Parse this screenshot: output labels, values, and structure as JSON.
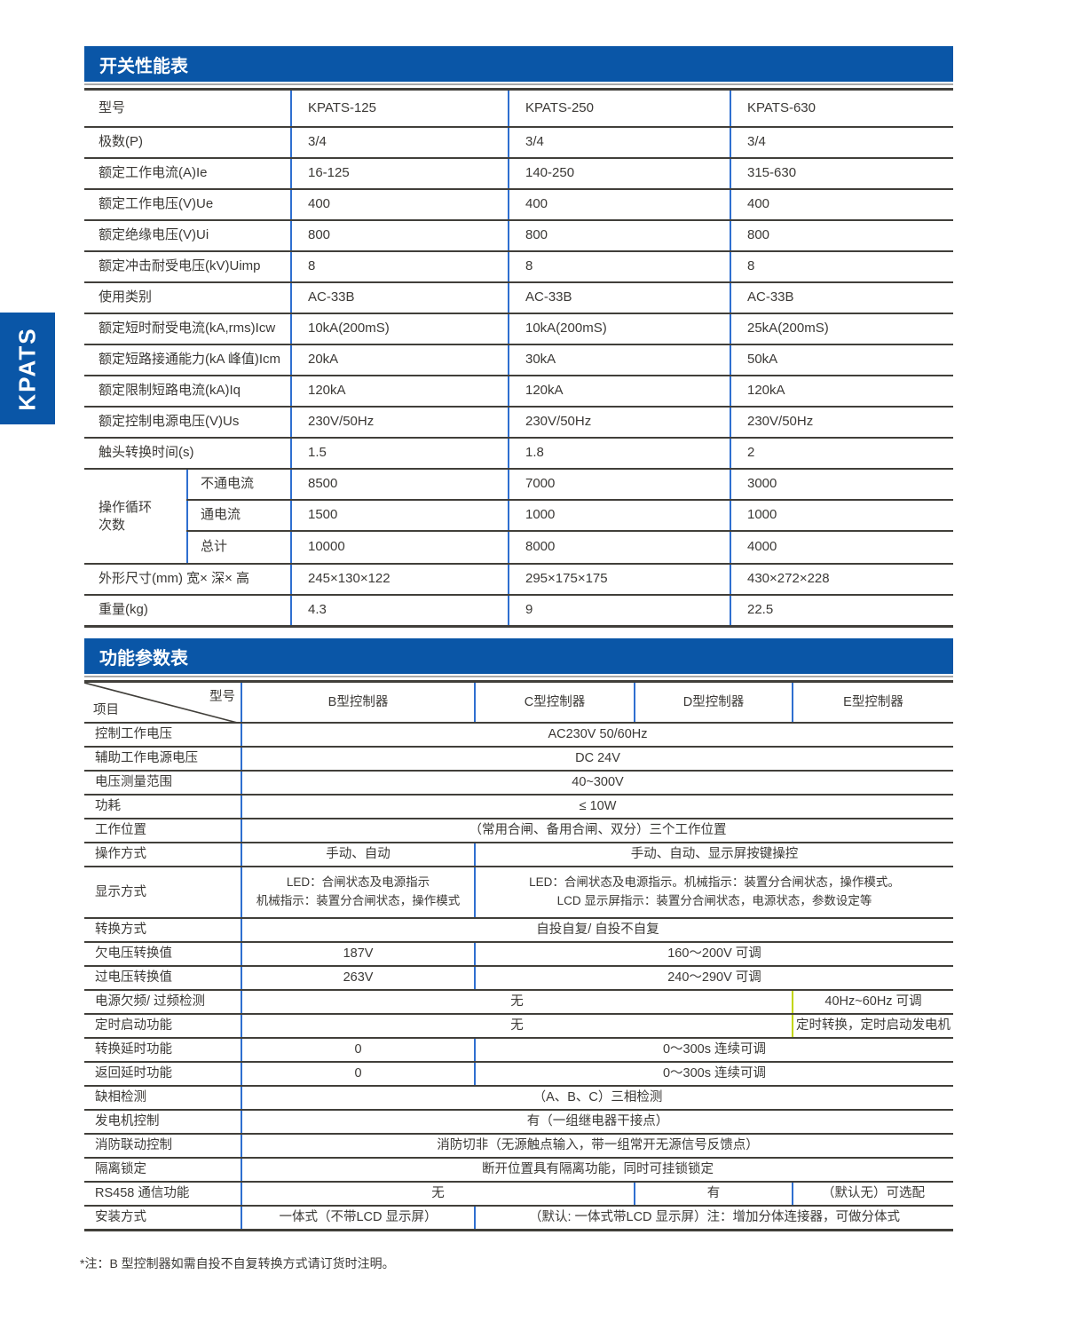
{
  "sidebar": {
    "label": "KPATS"
  },
  "colors": {
    "primary_blue": "#0a56a7",
    "divider_blue": "#2f6fd0",
    "divider_yellow": "#c2d500",
    "line_dark": "#413f3a"
  },
  "table1": {
    "title": "开关性能表",
    "header": {
      "label": "型号",
      "models": [
        "KPATS-125",
        "KPATS-250",
        "KPATS-630"
      ]
    },
    "rows": [
      {
        "label": "极数(P)",
        "values": [
          "3/4",
          "3/4",
          "3/4"
        ]
      },
      {
        "label": "额定工作电流(A)Ie",
        "values": [
          "16-125",
          "140-250",
          "315-630"
        ]
      },
      {
        "label": "额定工作电压(V)Ue",
        "values": [
          "400",
          "400",
          "400"
        ]
      },
      {
        "label": "额定绝缘电压(V)Ui",
        "values": [
          "800",
          "800",
          "800"
        ]
      },
      {
        "label": "额定冲击耐受电压(kV)Uimp",
        "values": [
          "8",
          "8",
          "8"
        ]
      },
      {
        "label": "使用类别",
        "values": [
          "AC-33B",
          "AC-33B",
          "AC-33B"
        ]
      },
      {
        "label": "额定短时耐受电流(kA,rms)Icw",
        "values": [
          "10kA(200mS)",
          "10kA(200mS)",
          "25kA(200mS)"
        ]
      },
      {
        "label": "额定短路接通能力(kA 峰值)Icm",
        "values": [
          "20kA",
          "30kA",
          "50kA"
        ]
      },
      {
        "label": "额定限制短路电流(kA)Iq",
        "values": [
          "120kA",
          "120kA",
          "120kA"
        ]
      },
      {
        "label": "额定控制电源电压(V)Us",
        "values": [
          "230V/50Hz",
          "230V/50Hz",
          "230V/50Hz"
        ]
      },
      {
        "label": "触头转换时间(s)",
        "values": [
          "1.5",
          "1.8",
          "2"
        ]
      }
    ],
    "cycle_group": {
      "label_line1": "操作循环",
      "label_line2": "次数",
      "subrows": [
        {
          "label": "不通电流",
          "values": [
            "8500",
            "7000",
            "3000"
          ]
        },
        {
          "label": "通电流",
          "values": [
            "1500",
            "1000",
            "1000"
          ]
        },
        {
          "label": "总计",
          "values": [
            "10000",
            "8000",
            "4000"
          ]
        }
      ]
    },
    "rows_after": [
      {
        "label": "外形尺寸(mm) 宽× 深× 高",
        "values": [
          "245×130×122",
          "295×175×175",
          "430×272×228"
        ]
      },
      {
        "label": "重量(kg)",
        "values": [
          "4.3",
          "9",
          "22.5"
        ]
      }
    ]
  },
  "table2": {
    "title": "功能参数表",
    "header": {
      "top_right": "型号",
      "bottom_left": "项目",
      "columns": [
        "B型控制器",
        "C型控制器",
        "D型控制器",
        "E型控制器"
      ]
    },
    "rows": [
      {
        "label": "控制工作电压",
        "cells": [
          {
            "span": "BCDE",
            "text": "AC230V 50/60Hz"
          }
        ]
      },
      {
        "label": "辅助工作电源电压",
        "cells": [
          {
            "span": "BCDE",
            "text": "DC 24V"
          }
        ]
      },
      {
        "label": "电压测量范围",
        "cells": [
          {
            "span": "BCDE",
            "text": "40~300V"
          }
        ]
      },
      {
        "label": "功耗",
        "cells": [
          {
            "span": "BCDE",
            "text": "≤ 10W"
          }
        ]
      },
      {
        "label": "工作位置",
        "cells": [
          {
            "span": "BCDE",
            "text": "（常用合闸、备用合闸、双分）三个工作位置"
          }
        ]
      },
      {
        "label": "操作方式",
        "cells": [
          {
            "span": "B",
            "text": "手动、自动"
          },
          {
            "span": "CDE",
            "text": "手动、自动、显示屏按键操控"
          }
        ]
      },
      {
        "label": "显示方式",
        "tall": true,
        "cells": [
          {
            "span": "B",
            "lines": [
              "LED：合闸状态及电源指示",
              "机械指示：装置分合闸状态，操作模式"
            ]
          },
          {
            "span": "CDE",
            "lines": [
              "LED：合闸状态及电源指示。机械指示：装置分合闸状态，操作模式。",
              "LCD 显示屏指示：装置分合闸状态，电源状态，参数设定等"
            ]
          }
        ]
      },
      {
        "label": "转换方式",
        "cells": [
          {
            "span": "BCDE",
            "text": "自投自复/ 自投不自复"
          }
        ]
      },
      {
        "label": "欠电压转换值",
        "cells": [
          {
            "span": "B",
            "text": "187V"
          },
          {
            "span": "CDE",
            "text": "160～200V 可调"
          }
        ]
      },
      {
        "label": "过电压转换值",
        "cells": [
          {
            "span": "B",
            "text": "263V"
          },
          {
            "span": "CDE",
            "text": "240～290V 可调"
          }
        ]
      },
      {
        "label": "电源欠频/ 过频检测",
        "cells": [
          {
            "span": "BCD",
            "text": "无"
          },
          {
            "span": "E",
            "text": "40Hz~60Hz 可调",
            "divider": "yellow"
          }
        ]
      },
      {
        "label": "定时启动功能",
        "cells": [
          {
            "span": "BCD",
            "text": "无"
          },
          {
            "span": "E",
            "text": "定时转换，定时启动发电机",
            "divider": "yellow"
          }
        ]
      },
      {
        "label": "转换延时功能",
        "cells": [
          {
            "span": "B",
            "text": "0"
          },
          {
            "span": "CDE",
            "text": "0～300s 连续可调"
          }
        ]
      },
      {
        "label": "返回延时功能",
        "cells": [
          {
            "span": "B",
            "text": "0"
          },
          {
            "span": "CDE",
            "text": "0～300s 连续可调"
          }
        ]
      },
      {
        "label": "缺相检测",
        "cells": [
          {
            "span": "BCDE",
            "text": "（A、B、C）三相检测"
          }
        ]
      },
      {
        "label": "发电机控制",
        "cells": [
          {
            "span": "BCDE",
            "text": "有（一组继电器干接点）"
          }
        ]
      },
      {
        "label": "消防联动控制",
        "cells": [
          {
            "span": "BCDE",
            "text": "消防切非（无源触点输入，带一组常开无源信号反馈点）"
          }
        ]
      },
      {
        "label": "隔离锁定",
        "cells": [
          {
            "span": "BCDE",
            "text": "断开位置具有隔离功能，同时可挂锁锁定"
          }
        ]
      },
      {
        "label": "RS458 通信功能",
        "cells": [
          {
            "span": "BC",
            "text": "无"
          },
          {
            "span": "D",
            "text": "有"
          },
          {
            "span": "E",
            "text": "（默认无）可选配"
          }
        ]
      },
      {
        "label": "安装方式",
        "cells": [
          {
            "span": "B",
            "text": "一体式（不带LCD 显示屏）"
          },
          {
            "span": "CDE",
            "text": "（默认: 一体式带LCD 显示屏）注：增加分体连接器，可做分体式"
          }
        ]
      }
    ]
  },
  "footnote": "*注：B 型控制器如需自投不自复转换方式请订货时注明。"
}
